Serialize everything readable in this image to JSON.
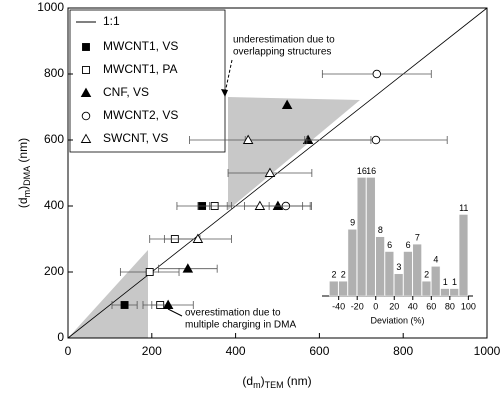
{
  "chart_data": [
    {
      "type": "scatter",
      "xlabel": [
        "(d",
        "m",
        ")",
        "TEM",
        " (nm)"
      ],
      "ylabel": [
        "(d",
        "m",
        ")",
        "DMA",
        " (nm)"
      ],
      "xlim": [
        0,
        1000
      ],
      "ylim": [
        0,
        1000
      ],
      "xticks": [
        0,
        200,
        400,
        600,
        800,
        1000
      ],
      "yticks": [
        0,
        200,
        400,
        600,
        800,
        1000
      ],
      "reference_line": {
        "name": "1:1",
        "x": [
          0,
          1000
        ],
        "values": [
          0,
          1000
        ]
      },
      "annotations": [
        [
          "underestimation due to",
          "overlapping structures"
        ],
        [
          "overestimation due to",
          "multiple charging in DMA"
        ]
      ],
      "series": [
        {
          "name": "MWCNT1, VS",
          "marker": "square",
          "filled": true,
          "x": [
            135,
            320
          ],
          "values": [
            100,
            400
          ],
          "xerr": [
            30,
            60
          ]
        },
        {
          "name": "MWCNT1, PA",
          "marker": "square",
          "filled": false,
          "x": [
            220,
            195,
            255,
            350
          ],
          "values": [
            100,
            200,
            300,
            400
          ],
          "xerr": [
            20,
            70,
            60,
            40
          ]
        },
        {
          "name": "CNF, VS",
          "marker": "triangle",
          "filled": true,
          "x": [
            239,
            286,
            501,
            573,
            523
          ],
          "values": [
            100,
            210,
            400,
            600,
            706
          ],
          "xerr": [
            60,
            70,
            80,
            150,
            0
          ]
        },
        {
          "name": "MWCNT2, VS",
          "marker": "circle",
          "filled": false,
          "x": [
            520,
            735,
            737
          ],
          "values": [
            400,
            600,
            800
          ],
          "xerr": [
            40,
            170,
            130
          ]
        },
        {
          "name": "SWCNT, VS",
          "marker": "triangle",
          "filled": false,
          "x": [
            310,
            458,
            430,
            482
          ],
          "values": [
            300,
            400,
            600,
            500
          ],
          "xerr": [
            80,
            120,
            140,
            100
          ]
        }
      ]
    },
    {
      "type": "histogram",
      "xlabel": "Deviation (%)",
      "color": "#b0b0b0",
      "bins": [
        -50,
        -40,
        -30,
        -20,
        -10,
        0,
        10,
        20,
        30,
        40,
        50,
        60,
        70,
        80,
        90,
        100
      ],
      "values": [
        2,
        2,
        9,
        16,
        16,
        8,
        6,
        3,
        6,
        7,
        2,
        4,
        1,
        1,
        11
      ],
      "xlim": [
        -58,
        105
      ],
      "ylim": [
        0,
        17
      ],
      "xticks": [
        -40,
        -20,
        0,
        20,
        40,
        60,
        80,
        100
      ]
    }
  ]
}
